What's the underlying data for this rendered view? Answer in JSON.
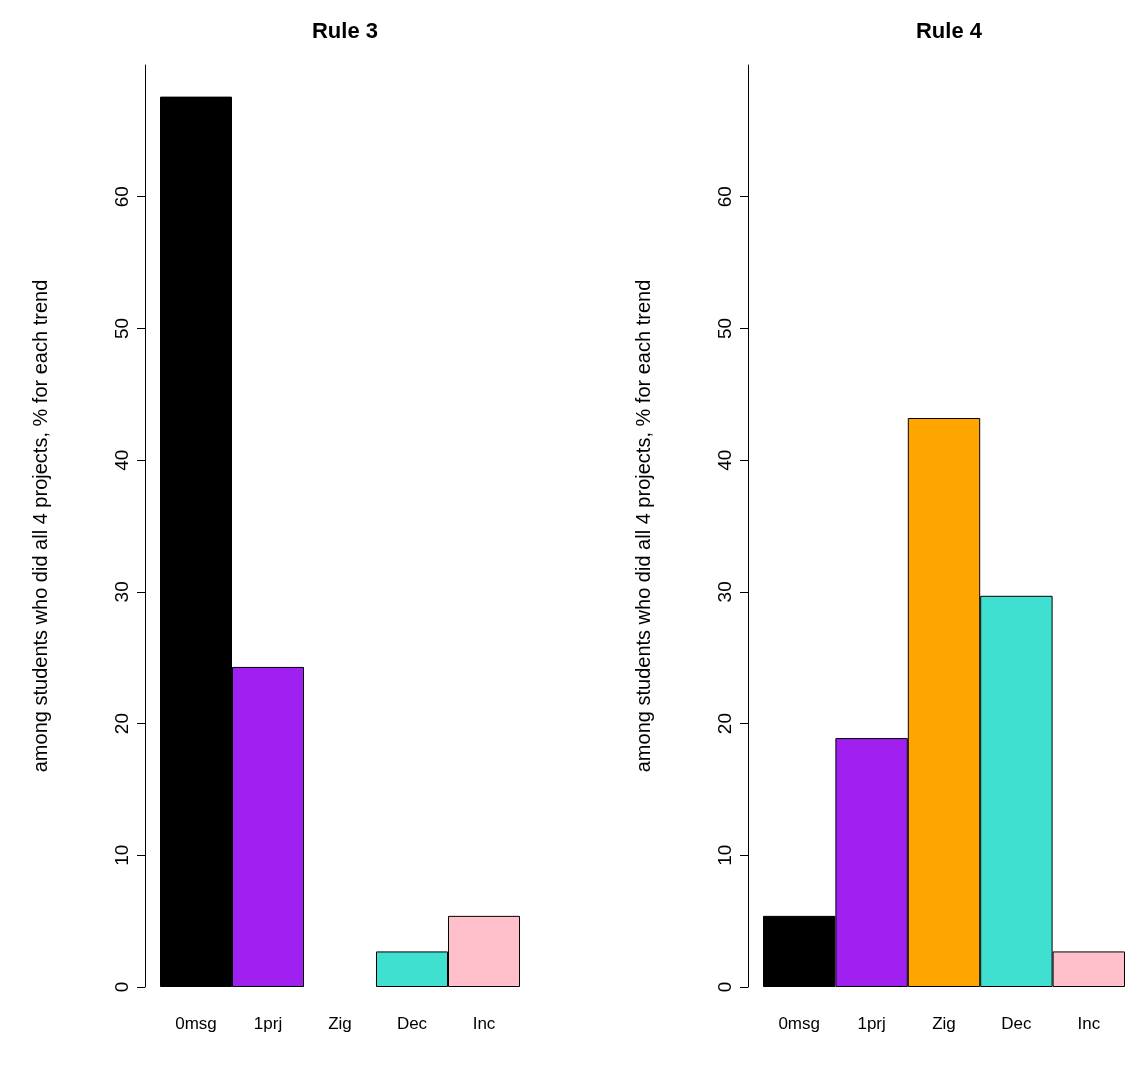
{
  "chart_data": [
    {
      "type": "bar",
      "title": "Rule 3",
      "ylabel": "among students who did all 4 projects, % for each trend",
      "categories": [
        "0msg",
        "1prj",
        "Zig",
        "Dec",
        "Inc"
      ],
      "values": [
        67.6,
        24.3,
        0,
        2.7,
        5.4
      ],
      "colors": [
        "#000000",
        "#a020f0",
        null,
        "#40e0d0",
        "#ffc0cb"
      ],
      "ylim": [
        0,
        70
      ],
      "yticks": [
        0,
        10,
        20,
        30,
        40,
        50,
        60
      ],
      "grid": false
    },
    {
      "type": "bar",
      "title": "Rule 4",
      "ylabel": "among students who did all 4 projects, % for each trend",
      "categories": [
        "0msg",
        "1prj",
        "Zig",
        "Dec",
        "Inc"
      ],
      "values": [
        5.4,
        18.9,
        43.2,
        29.7,
        2.7
      ],
      "colors": [
        "#000000",
        "#a020f0",
        "#ffa500",
        "#40e0d0",
        "#ffc0cb"
      ],
      "ylim": [
        0,
        70
      ],
      "yticks": [
        0,
        10,
        20,
        30,
        40,
        50,
        60
      ],
      "grid": false
    }
  ]
}
